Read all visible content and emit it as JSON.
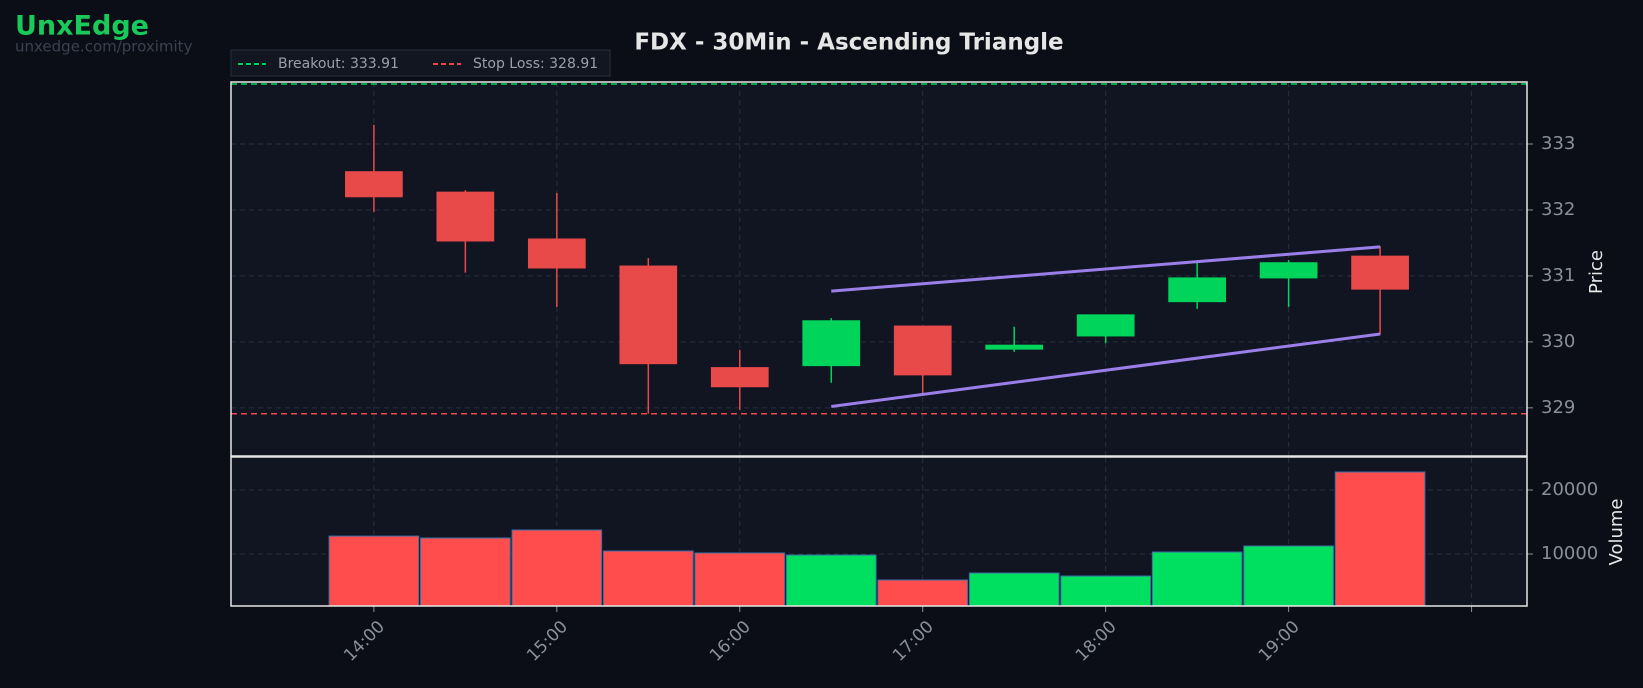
{
  "watermark": {
    "title": "UnxEdge",
    "subtitle": "unxedge.com/proximity"
  },
  "chart_data": {
    "type": "candlestick",
    "title": "FDX - 30Min - Ascending Triangle",
    "x": [
      14,
      14.5,
      15,
      15.5,
      16,
      16.5,
      17,
      17.5,
      18,
      18.5,
      19,
      19.5
    ],
    "open": [
      332.58,
      332.27,
      331.56,
      331.15,
      329.61,
      329.64,
      330.24,
      329.89,
      330.09,
      330.61,
      330.97,
      331.3
    ],
    "high": [
      333.29,
      332.3,
      332.26,
      331.27,
      329.88,
      330.36,
      330.24,
      330.23,
      330.41,
      331.21,
      331.24,
      331.45
    ],
    "low": [
      331.97,
      331.05,
      330.53,
      328.91,
      328.97,
      329.38,
      329.21,
      329.85,
      329.98,
      330.5,
      330.53,
      330.11
    ],
    "close": [
      332.2,
      331.53,
      331.12,
      329.67,
      329.32,
      330.32,
      329.5,
      329.95,
      330.41,
      330.97,
      331.2,
      330.8
    ],
    "up_color": "#00d45a",
    "down_color": "#e84a4a",
    "xlim": [
      13.219,
      20.303
    ],
    "xticks": [
      {
        "value": 14,
        "label": "14:00"
      },
      {
        "value": 15,
        "label": "15:00"
      },
      {
        "value": 16,
        "label": "16:00"
      },
      {
        "value": 17,
        "label": "17:00"
      },
      {
        "value": 18,
        "label": "18:00"
      },
      {
        "value": 19,
        "label": "19:00"
      },
      {
        "value": 20,
        "label": null
      }
    ],
    "ylim": [
      328.27,
      333.94
    ],
    "yticks": [
      329,
      330,
      331,
      332,
      333
    ],
    "y_label": "Price",
    "grid": true,
    "levels": [
      {
        "name": "Breakout: 333.91",
        "value": 333.91,
        "color": "#00d45a"
      },
      {
        "name": "Stop Loss: 328.91",
        "value": 328.91,
        "color": "#e84a4a"
      }
    ],
    "trendlines": [
      {
        "x": [
          16.5,
          19.5
        ],
        "values": [
          330.77,
          331.44
        ]
      },
      {
        "x": [
          16.5,
          19.5
        ],
        "values": [
          329.02,
          330.12
        ]
      }
    ],
    "trendline_color": "#9b7fe8",
    "volume": {
      "values": [
        12800,
        12500,
        13750,
        10470,
        10160,
        9840,
        5940,
        7030,
        6560,
        10310,
        11250,
        22810
      ],
      "ylim": [
        1875,
        25000
      ],
      "yticks": [
        10000,
        20000
      ],
      "y_label": "Volume",
      "up_color": "#00e060",
      "down_color": "#ff4d4d"
    }
  }
}
